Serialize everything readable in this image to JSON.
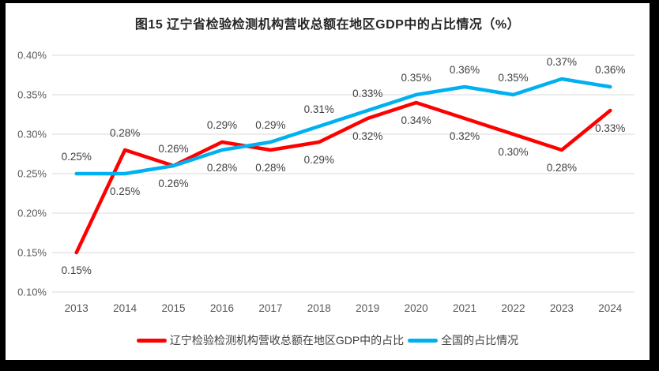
{
  "frame": {
    "outer_background": "#000000",
    "chart_background": "#ffffff"
  },
  "chart_data": {
    "type": "line",
    "title": "图15 辽宁省检验检测机构营收总额在地区GDP中的占比情况（%）",
    "categories": [
      "2013",
      "2014",
      "2015",
      "2016",
      "2017",
      "2018",
      "2019",
      "2020",
      "2021",
      "2022",
      "2023",
      "2024"
    ],
    "series": [
      {
        "name": "辽宁检验检测机构营收总额在地区GDP中的占比",
        "color": "#FF0000",
        "values": [
          0.15,
          0.28,
          0.26,
          0.29,
          0.28,
          0.29,
          0.32,
          0.34,
          0.32,
          0.3,
          0.28,
          0.33
        ]
      },
      {
        "name": "全国的占比情况",
        "color": "#00B0F0",
        "values": [
          0.25,
          0.25,
          0.26,
          0.28,
          0.29,
          0.31,
          0.33,
          0.35,
          0.36,
          0.35,
          0.37,
          0.36
        ]
      }
    ],
    "y_axis": {
      "min": 0.1,
      "max": 0.4,
      "step": 0.05,
      "ticks": [
        "0.40%",
        "0.35%",
        "0.30%",
        "0.25%",
        "0.20%",
        "0.15%",
        "0.10%"
      ],
      "unit": "%"
    },
    "data_labels": true,
    "data_label_format": "0.00%",
    "grid": true,
    "legend_position": "bottom",
    "styles": {
      "gridline_color": "#D9D9D9",
      "axis_text_color": "#595959",
      "data_label_color": "#404040",
      "title_color": "#262626",
      "legend_text_color": "#404040"
    }
  }
}
